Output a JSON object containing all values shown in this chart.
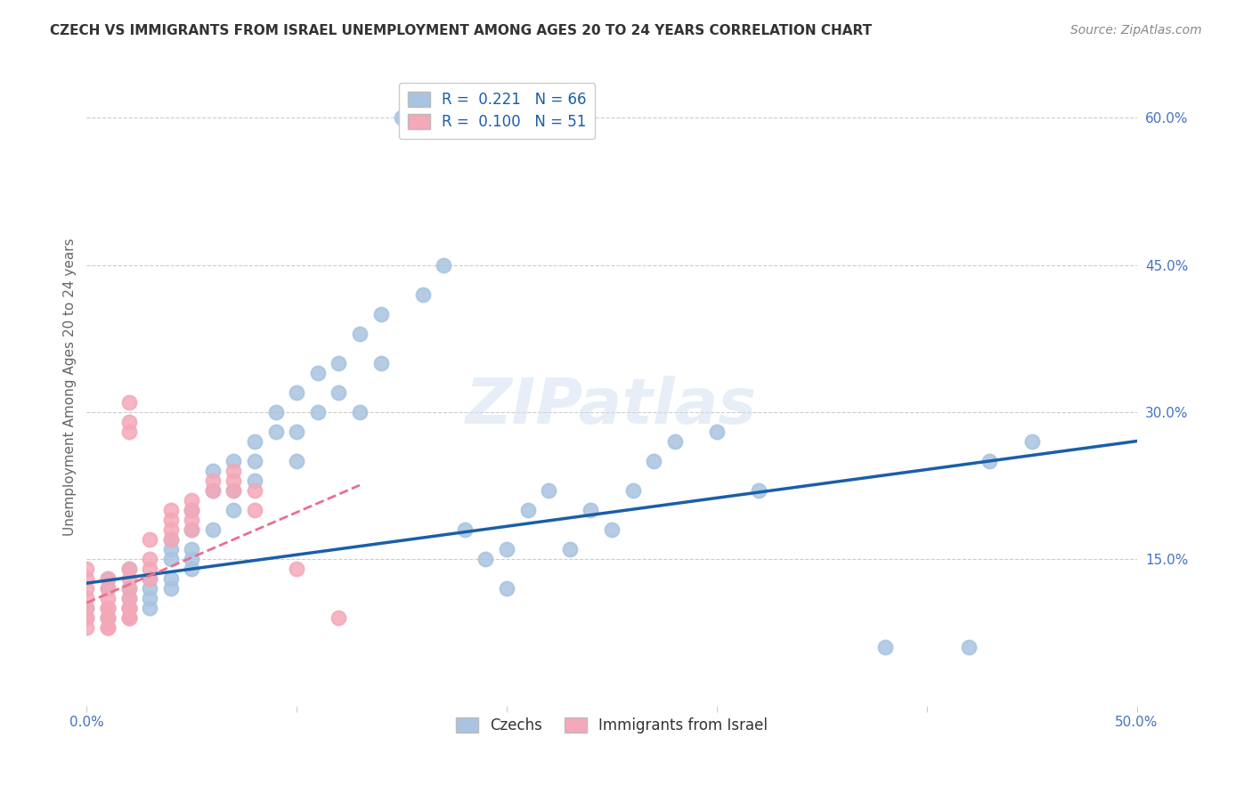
{
  "title": "CZECH VS IMMIGRANTS FROM ISRAEL UNEMPLOYMENT AMONG AGES 20 TO 24 YEARS CORRELATION CHART",
  "source": "Source: ZipAtlas.com",
  "ylabel": "Unemployment Among Ages 20 to 24 years",
  "xlim": [
    0.0,
    0.5
  ],
  "ylim": [
    0.0,
    0.65
  ],
  "xticks": [
    0.0,
    0.1,
    0.2,
    0.3,
    0.4,
    0.5
  ],
  "yticks_right": [
    0.15,
    0.3,
    0.45,
    0.6
  ],
  "ytick_labels_right": [
    "15.0%",
    "30.0%",
    "45.0%",
    "60.0%"
  ],
  "xtick_labels": [
    "0.0%",
    "",
    "",
    "",
    "",
    "50.0%"
  ],
  "legend_r1": "R =  0.221   N = 66",
  "legend_r2": "R =  0.100   N = 51",
  "czech_color": "#a8c4e0",
  "israel_color": "#f4a8b8",
  "czech_line_color": "#1a5fa8",
  "israel_line_color": "#e87090",
  "title_color": "#333333",
  "axis_label_color": "#666666",
  "tick_color": "#4472c4",
  "watermark": "ZIPatlas",
  "czechs_label": "Czechs",
  "israel_label": "Immigrants from Israel",
  "czech_scatter_x": [
    0.0,
    0.01,
    0.01,
    0.01,
    0.02,
    0.02,
    0.02,
    0.02,
    0.02,
    0.03,
    0.03,
    0.03,
    0.03,
    0.04,
    0.04,
    0.04,
    0.04,
    0.04,
    0.05,
    0.05,
    0.05,
    0.05,
    0.05,
    0.06,
    0.06,
    0.06,
    0.07,
    0.07,
    0.07,
    0.08,
    0.08,
    0.08,
    0.09,
    0.09,
    0.1,
    0.1,
    0.1,
    0.11,
    0.11,
    0.12,
    0.12,
    0.13,
    0.13,
    0.14,
    0.14,
    0.15,
    0.16,
    0.17,
    0.18,
    0.19,
    0.2,
    0.2,
    0.21,
    0.22,
    0.23,
    0.24,
    0.25,
    0.26,
    0.27,
    0.28,
    0.3,
    0.32,
    0.38,
    0.42,
    0.43,
    0.45
  ],
  "czech_scatter_y": [
    0.1,
    0.09,
    0.12,
    0.13,
    0.11,
    0.1,
    0.12,
    0.14,
    0.09,
    0.13,
    0.12,
    0.1,
    0.11,
    0.15,
    0.16,
    0.13,
    0.12,
    0.17,
    0.16,
    0.14,
    0.18,
    0.2,
    0.15,
    0.22,
    0.24,
    0.18,
    0.25,
    0.22,
    0.2,
    0.27,
    0.25,
    0.23,
    0.28,
    0.3,
    0.32,
    0.28,
    0.25,
    0.34,
    0.3,
    0.32,
    0.35,
    0.38,
    0.3,
    0.4,
    0.35,
    0.6,
    0.42,
    0.45,
    0.18,
    0.15,
    0.12,
    0.16,
    0.2,
    0.22,
    0.16,
    0.2,
    0.18,
    0.22,
    0.25,
    0.27,
    0.28,
    0.22,
    0.06,
    0.06,
    0.25,
    0.27
  ],
  "israel_scatter_x": [
    0.0,
    0.0,
    0.0,
    0.0,
    0.0,
    0.0,
    0.0,
    0.0,
    0.01,
    0.01,
    0.01,
    0.01,
    0.01,
    0.01,
    0.01,
    0.01,
    0.01,
    0.01,
    0.02,
    0.02,
    0.02,
    0.02,
    0.02,
    0.02,
    0.02,
    0.02,
    0.02,
    0.02,
    0.02,
    0.02,
    0.03,
    0.03,
    0.03,
    0.03,
    0.04,
    0.04,
    0.04,
    0.04,
    0.05,
    0.05,
    0.05,
    0.05,
    0.06,
    0.06,
    0.07,
    0.07,
    0.07,
    0.08,
    0.08,
    0.1,
    0.12
  ],
  "israel_scatter_y": [
    0.09,
    0.1,
    0.11,
    0.12,
    0.13,
    0.14,
    0.09,
    0.08,
    0.08,
    0.1,
    0.1,
    0.11,
    0.12,
    0.13,
    0.09,
    0.1,
    0.09,
    0.08,
    0.1,
    0.11,
    0.09,
    0.12,
    0.13,
    0.14,
    0.1,
    0.1,
    0.09,
    0.28,
    0.29,
    0.31,
    0.13,
    0.14,
    0.15,
    0.17,
    0.19,
    0.2,
    0.18,
    0.17,
    0.2,
    0.21,
    0.19,
    0.18,
    0.22,
    0.23,
    0.24,
    0.22,
    0.23,
    0.2,
    0.22,
    0.14,
    0.09
  ],
  "czech_trend_x": [
    0.0,
    0.5
  ],
  "czech_trend_y": [
    0.125,
    0.27
  ],
  "israel_trend_x": [
    0.0,
    0.13
  ],
  "israel_trend_y": [
    0.105,
    0.225
  ]
}
